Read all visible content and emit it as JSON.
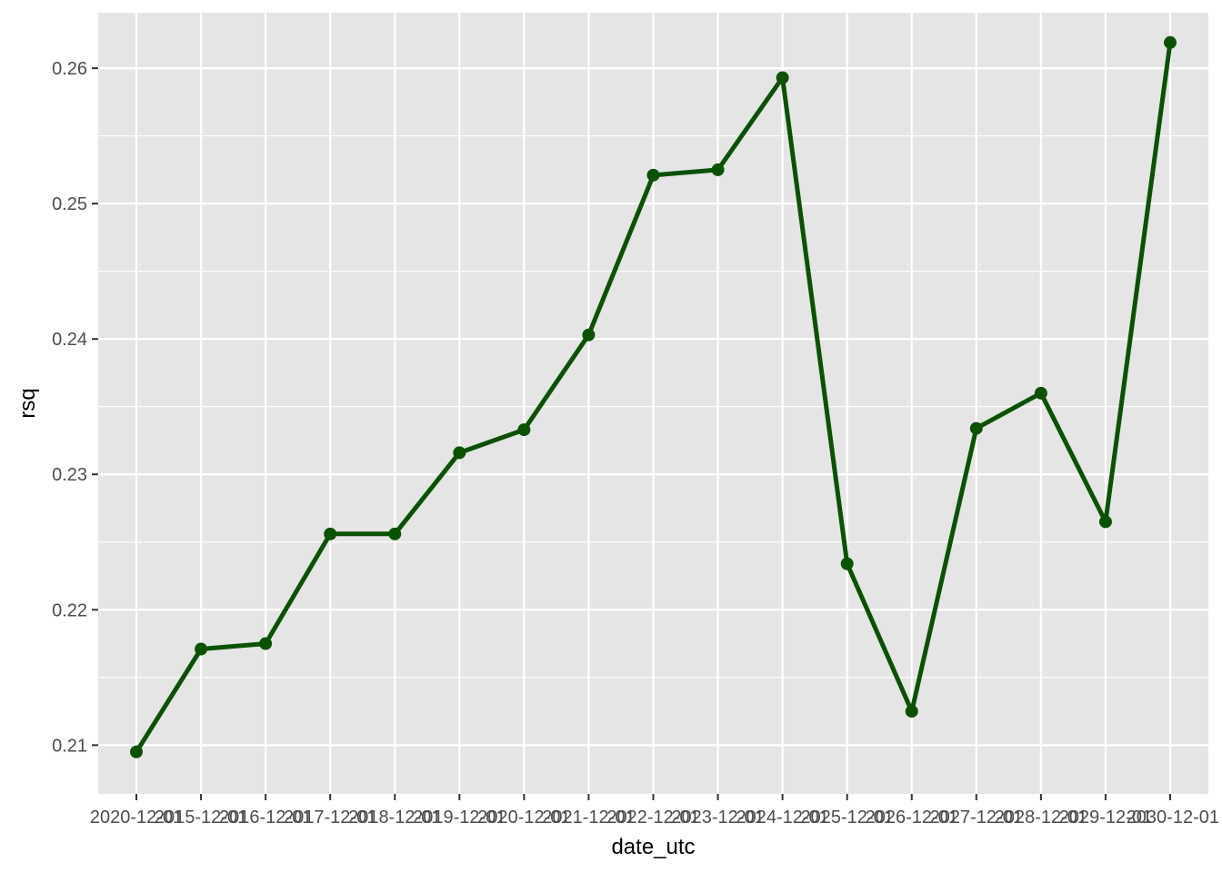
{
  "chart_data": {
    "type": "line",
    "xlabel": "date_utc",
    "ylabel": "rsq",
    "x": [
      "2020-12-01",
      "2015-12-01",
      "2016-12-01",
      "2017-12-01",
      "2018-12-01",
      "2019-12-01",
      "2020-12-01",
      "2021-12-01",
      "2022-12-01",
      "2023-12-01",
      "2024-12-01",
      "2025-12-01",
      "2026-12-01",
      "2027-12-01",
      "2028-12-01",
      "2029-12-01",
      "2030-12-01"
    ],
    "tick_labels": [
      "2020-12-01",
      "2015-12-01",
      "2016-12-01",
      "2017-12-01",
      "2018-12-01",
      "2019-12-01",
      "2020-12-01",
      "2021-12-01",
      "2022-12-01",
      "2023-12-01",
      "2024-12-01",
      "2025-12-01",
      "2026-12-01",
      "2027-12-01",
      "2028-12-01",
      "2029-12-01",
      "2030-12-01"
    ],
    "series": [
      {
        "values": [
          0.2095,
          0.2171,
          0.2175,
          0.2256,
          0.2256,
          0.2316,
          0.2333,
          0.2403,
          0.2521,
          0.2525,
          0.2593,
          0.2234,
          0.2125,
          0.2334,
          0.236,
          0.2265,
          0.2619
        ],
        "color": "#0b5200"
      }
    ],
    "yticks": [
      0.21,
      0.22,
      0.23,
      0.24,
      0.25,
      0.26
    ],
    "ytick_labels": [
      "0.21",
      "0.22",
      "0.23",
      "0.24",
      "0.25",
      "0.26"
    ],
    "ylim": [
      0.2064,
      0.2641
    ],
    "grid": true,
    "panel_background": "#e5e5e5",
    "grid_color": "#ffffff"
  }
}
